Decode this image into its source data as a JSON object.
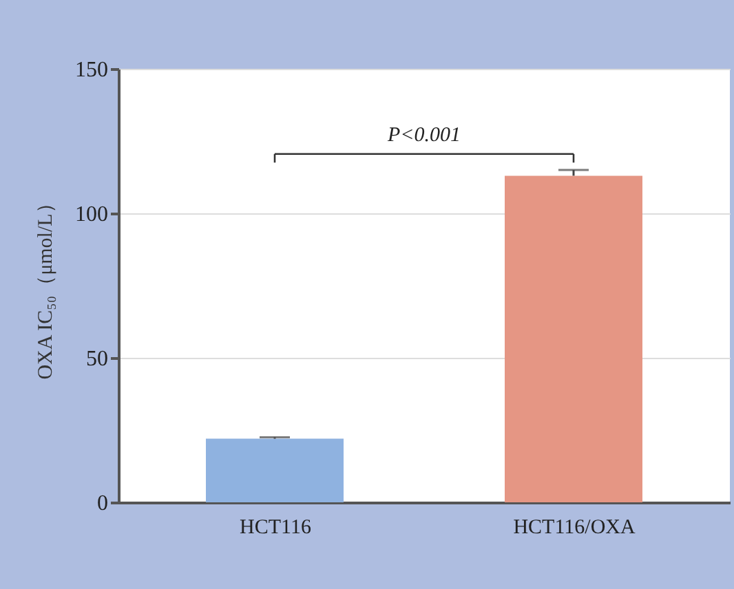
{
  "chart_data": {
    "type": "bar",
    "ylabel": "OXA IC₅₀（μmol/L）",
    "categories": [
      "HCT116",
      "HCT116/OXA"
    ],
    "values": [
      22,
      113
    ],
    "colors": [
      "#8fb2e0",
      "#e59684"
    ],
    "errors": [
      0.5,
      2
    ],
    "ylim": [
      0,
      150
    ],
    "yticks": [
      0,
      50,
      100,
      150
    ],
    "grid": "y",
    "annotations": [
      "P<0.001"
    ]
  }
}
